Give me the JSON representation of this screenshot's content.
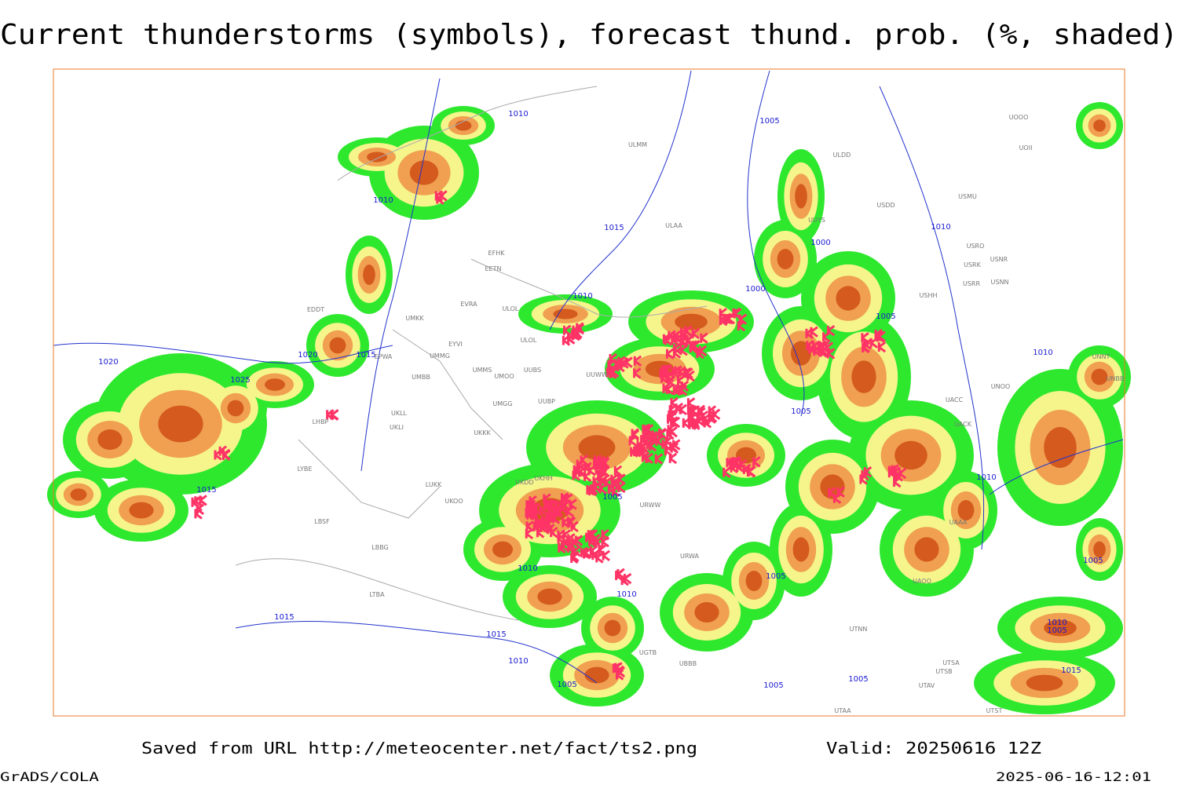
{
  "title": "Current thunderstorms (symbols), forecast thund. prob. (%, shaded)",
  "footer": {
    "source": "Saved from URL http://meteocenter.net/fact/ts2.png",
    "valid": "Valid: 20250616 12Z",
    "software": "GrADS/COLA",
    "timestamp": "2025-06-16-12:01"
  },
  "isobar_labels": [
    "1010",
    "1010",
    "1005",
    "1015",
    "1000",
    "1010",
    "1010",
    "1000",
    "1005",
    "1020",
    "1020",
    "1015",
    "1025",
    "1010",
    "1005",
    "1015",
    "1005",
    "1010",
    "1010",
    "1005",
    "1010",
    "1005",
    "1015",
    "1015",
    "1010",
    "1010",
    "1005",
    "1015",
    "1005",
    "1005",
    "1005"
  ],
  "stations": [
    "ULMM",
    "ULDD",
    "USDD",
    "USMU",
    "ULAA",
    "UUYS",
    "USRO",
    "USRK",
    "USNR",
    "USRR",
    "USNN",
    "UOOO",
    "UOII",
    "USHH",
    "EFHK",
    "EETN",
    "EVRA",
    "ULOL",
    "UMKK",
    "EYVI",
    "ULOL",
    "UMMG",
    "UMMS",
    "UMOO",
    "UUBS",
    "UMBB",
    "UUWW",
    "UMGG",
    "UUBP",
    "UKLL",
    "UKLI",
    "UKKK",
    "EDDT",
    "EPWA",
    "LHBP",
    "LYBE",
    "LBSF",
    "LUKK",
    "UKOO",
    "UKHH",
    "UKDD",
    "URWW",
    "URWA",
    "LTBA",
    "LBBG",
    "UNNT",
    "UNOO",
    "UNBB",
    "UACC",
    "UACK",
    "UAAA",
    "UAOO",
    "UTNN",
    "UTSA",
    "UTSB",
    "UTAV",
    "UTAA",
    "UTST",
    "UBBB",
    "UGTB"
  ]
}
